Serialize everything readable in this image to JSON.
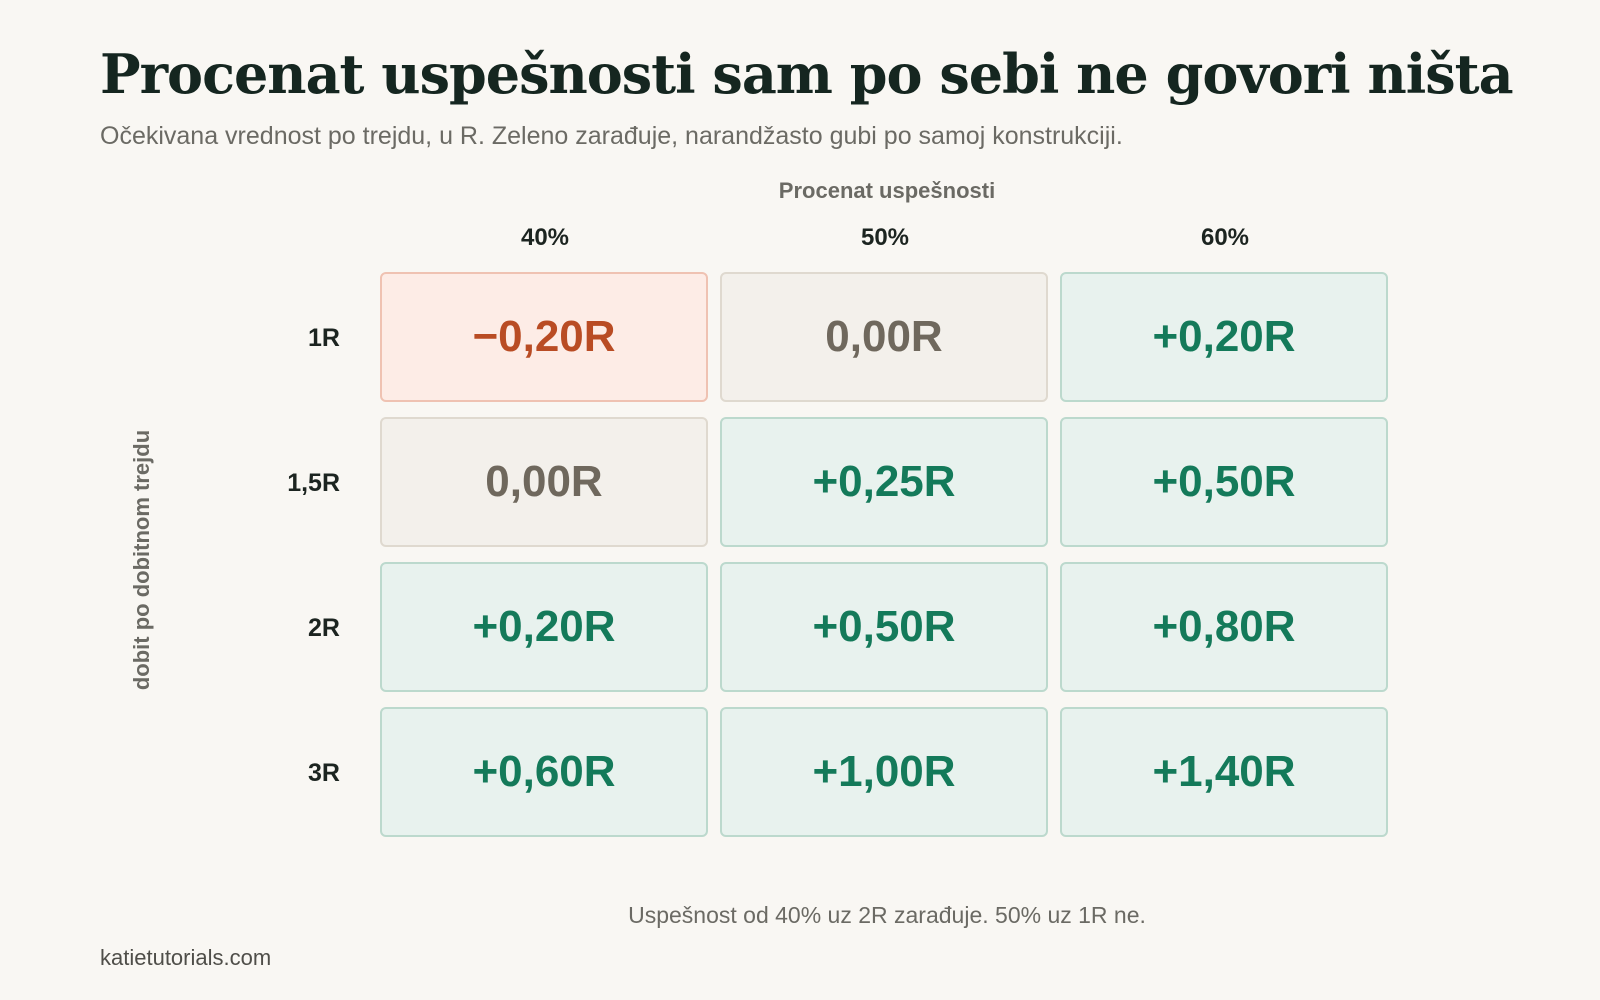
{
  "title": "Procenat uspešnosti sam po sebi ne govori ništa",
  "subtitle": "Očekivana vrednost po trejdu, u R. Zeleno zarađuje, narandžasto gubi po samoj konstrukciji.",
  "footnote": "Uspešnost od 40% uz 2R zarađuje. 50% uz 1R ne.",
  "source": "katietutorials.com",
  "colors": {
    "positive": "#147a5a",
    "negative": "#b94c24",
    "neutral": "#6f685d"
  },
  "chart_data": {
    "type": "heatmap",
    "xlabel": "Procenat uspešnosti",
    "ylabel": "dobit po dobitnom trejdu",
    "x_categories": [
      "40%",
      "50%",
      "60%"
    ],
    "y_categories": [
      "1R",
      "1,5R",
      "2R",
      "3R"
    ],
    "values": [
      [
        -0.2,
        0.0,
        0.2
      ],
      [
        0.0,
        0.25,
        0.5
      ],
      [
        0.2,
        0.5,
        0.8
      ],
      [
        0.6,
        1.0,
        1.4
      ]
    ],
    "value_labels": [
      [
        "−0,20R",
        "0,00R",
        "+0,20R"
      ],
      [
        "0,00R",
        "+0,25R",
        "+0,50R"
      ],
      [
        "+0,20R",
        "+0,50R",
        "+0,80R"
      ],
      [
        "+0,60R",
        "+1,00R",
        "+1,40R"
      ]
    ]
  }
}
